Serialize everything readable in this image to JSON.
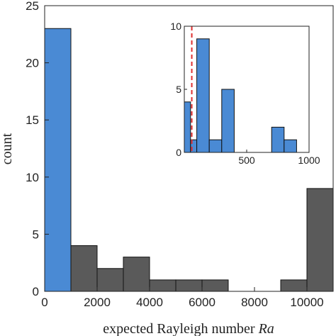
{
  "chart_data": [
    {
      "type": "histogram",
      "bins": [
        0,
        1000,
        2000,
        3000,
        4000,
        5000,
        6000,
        7000,
        8000,
        9000,
        10000,
        11000
      ],
      "values": [
        23,
        4,
        2,
        3,
        1,
        1,
        1,
        0,
        0,
        1,
        9
      ],
      "colors": [
        "#4a8ad4",
        "#5a5a5a",
        "#5a5a5a",
        "#5a5a5a",
        "#5a5a5a",
        "#5a5a5a",
        "#5a5a5a",
        "#5a5a5a",
        "#5a5a5a",
        "#5a5a5a",
        "#5a5a5a"
      ],
      "xlabel": "expected Rayleigh number",
      "xlabel_symbol": "Ra",
      "ylabel": "count",
      "xlim": [
        0,
        11000
      ],
      "xticks": [
        0,
        2000,
        4000,
        6000,
        8000,
        10000
      ],
      "ylim": [
        0,
        25
      ],
      "yticks": [
        0,
        5,
        10,
        15,
        20,
        25
      ]
    },
    {
      "type": "histogram",
      "bins": [
        0,
        50,
        100,
        200,
        300,
        400,
        500,
        600,
        700,
        800,
        900
      ],
      "values": [
        4,
        1,
        9,
        1,
        5,
        0,
        0,
        0,
        2,
        1
      ],
      "color": "#4a8ad4",
      "reference_line": 60,
      "reference_color": "#e03030",
      "xlim": [
        0,
        1000
      ],
      "xticks": [
        500,
        1000
      ],
      "ylim": [
        0,
        10
      ],
      "yticks": [
        0,
        5,
        10
      ]
    }
  ]
}
